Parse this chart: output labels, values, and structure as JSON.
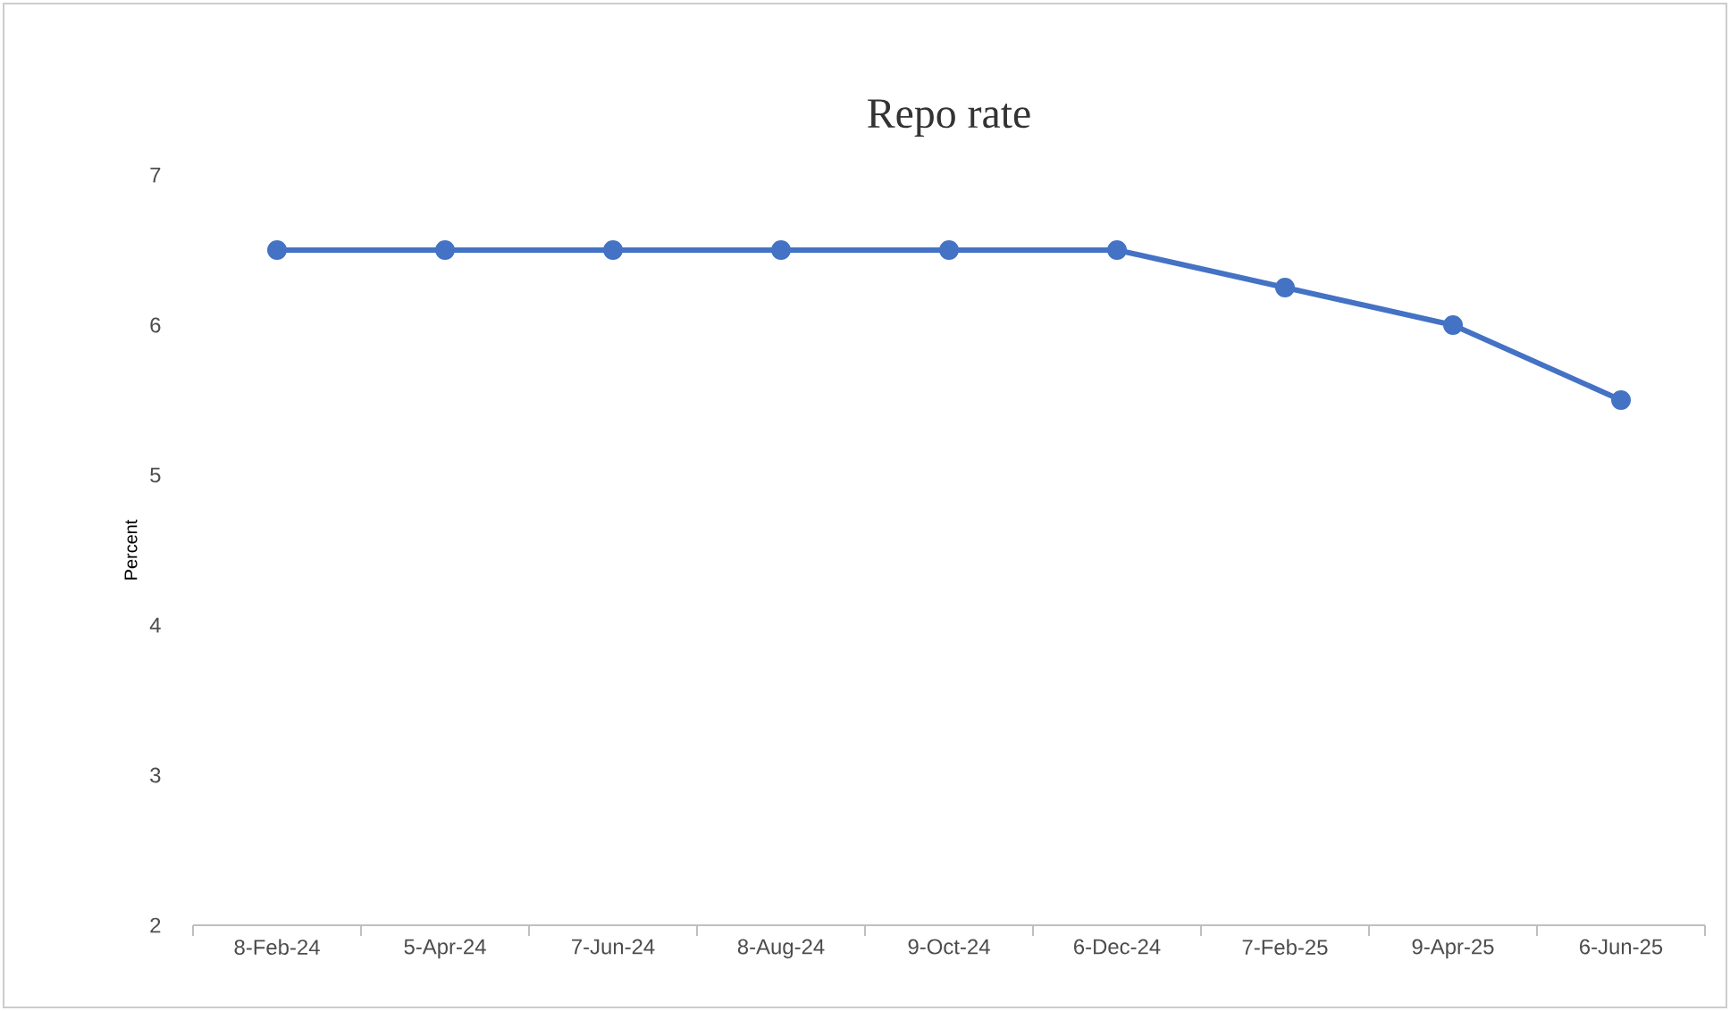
{
  "chart_data": {
    "type": "line",
    "title": "Repo rate",
    "ylabel": "Percent",
    "categories": [
      "8-Feb-24",
      "5-Apr-24",
      "7-Jun-24",
      "8-Aug-24",
      "9-Oct-24",
      "6-Dec-24",
      "7-Feb-25",
      "9-Apr-25",
      "6-Jun-25"
    ],
    "series": [
      {
        "color": "#4472c4",
        "values": [
          6.5,
          6.5,
          6.5,
          6.5,
          6.5,
          6.5,
          6.25,
          6.0,
          5.5
        ]
      }
    ],
    "ylim": [
      2,
      7
    ],
    "yticks": [
      2,
      3,
      4,
      5,
      6,
      7
    ],
    "marker": "circle",
    "line_style": "solid"
  }
}
